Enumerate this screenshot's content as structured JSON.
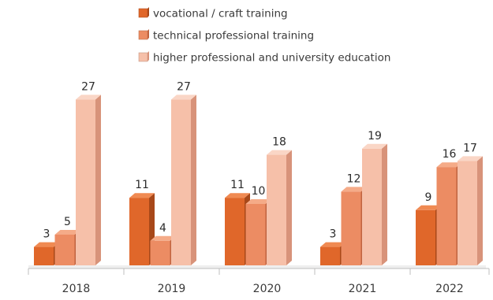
{
  "chart_data": {
    "type": "bar",
    "style": "3d-column",
    "categories": [
      "2018",
      "2019",
      "2020",
      "2021",
      "2022"
    ],
    "series": [
      {
        "name": "vocational / craft training",
        "values": [
          3,
          11,
          11,
          3,
          9
        ],
        "color": "#e0672a",
        "side_color": "#a84819",
        "top_color": "#f08a52"
      },
      {
        "name": "technical professional training",
        "values": [
          5,
          4,
          10,
          12,
          16
        ],
        "color": "#ec8c63",
        "side_color": "#c16440",
        "top_color": "#f5ab88"
      },
      {
        "name": "higher professional and university education",
        "values": [
          27,
          27,
          18,
          19,
          17
        ],
        "color": "#f6c0a9",
        "side_color": "#d8937a",
        "top_color": "#fad6c6"
      }
    ],
    "title": "",
    "xlabel": "",
    "ylabel": "",
    "ylim": [
      0,
      30
    ],
    "grid": false,
    "legend_position": "top",
    "data_labels": true
  }
}
